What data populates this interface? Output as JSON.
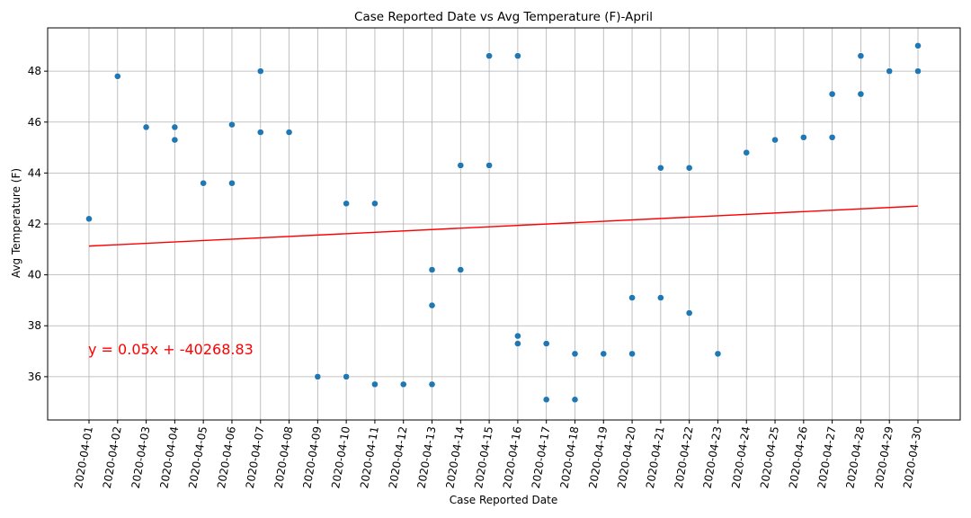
{
  "chart_data": {
    "type": "scatter",
    "title": "Case Reported Date vs Avg Temperature (F)-April",
    "xlabel": "Case Reported Date",
    "ylabel": "Avg Temperature (F)",
    "x_categories": [
      "2020-04-01",
      "2020-04-02",
      "2020-04-03",
      "2020-04-04",
      "2020-04-05",
      "2020-04-06",
      "2020-04-07",
      "2020-04-08",
      "2020-04-09",
      "2020-04-10",
      "2020-04-11",
      "2020-04-12",
      "2020-04-13",
      "2020-04-14",
      "2020-04-15",
      "2020-04-16",
      "2020-04-17",
      "2020-04-18",
      "2020-04-19",
      "2020-04-20",
      "2020-04-21",
      "2020-04-22",
      "2020-04-23",
      "2020-04-24",
      "2020-04-25",
      "2020-04-26",
      "2020-04-27",
      "2020-04-28",
      "2020-04-29",
      "2020-04-30"
    ],
    "y_ticks": [
      36,
      38,
      40,
      42,
      44,
      46,
      48
    ],
    "ylim": [
      34.3,
      49.7
    ],
    "grid": true,
    "points": [
      {
        "x": "2020-04-01",
        "y": 42.2
      },
      {
        "x": "2020-04-02",
        "y": 47.8
      },
      {
        "x": "2020-04-03",
        "y": 45.8
      },
      {
        "x": "2020-04-04",
        "y": 45.8
      },
      {
        "x": "2020-04-04",
        "y": 45.3
      },
      {
        "x": "2020-04-05",
        "y": 43.6
      },
      {
        "x": "2020-04-06",
        "y": 45.9
      },
      {
        "x": "2020-04-06",
        "y": 43.6
      },
      {
        "x": "2020-04-07",
        "y": 48.0
      },
      {
        "x": "2020-04-07",
        "y": 45.6
      },
      {
        "x": "2020-04-08",
        "y": 45.6
      },
      {
        "x": "2020-04-09",
        "y": 36.0
      },
      {
        "x": "2020-04-10",
        "y": 42.8
      },
      {
        "x": "2020-04-10",
        "y": 36.0
      },
      {
        "x": "2020-04-11",
        "y": 42.8
      },
      {
        "x": "2020-04-11",
        "y": 35.7
      },
      {
        "x": "2020-04-12",
        "y": 35.7
      },
      {
        "x": "2020-04-13",
        "y": 40.2
      },
      {
        "x": "2020-04-13",
        "y": 38.8
      },
      {
        "x": "2020-04-13",
        "y": 35.7
      },
      {
        "x": "2020-04-14",
        "y": 44.3
      },
      {
        "x": "2020-04-14",
        "y": 40.2
      },
      {
        "x": "2020-04-15",
        "y": 48.6
      },
      {
        "x": "2020-04-15",
        "y": 44.3
      },
      {
        "x": "2020-04-16",
        "y": 48.6
      },
      {
        "x": "2020-04-16",
        "y": 37.6
      },
      {
        "x": "2020-04-16",
        "y": 37.3
      },
      {
        "x": "2020-04-17",
        "y": 37.3
      },
      {
        "x": "2020-04-17",
        "y": 35.1
      },
      {
        "x": "2020-04-18",
        "y": 36.9
      },
      {
        "x": "2020-04-18",
        "y": 35.1
      },
      {
        "x": "2020-04-19",
        "y": 36.9
      },
      {
        "x": "2020-04-20",
        "y": 39.1
      },
      {
        "x": "2020-04-20",
        "y": 36.9
      },
      {
        "x": "2020-04-21",
        "y": 44.2
      },
      {
        "x": "2020-04-21",
        "y": 39.1
      },
      {
        "x": "2020-04-22",
        "y": 44.2
      },
      {
        "x": "2020-04-22",
        "y": 38.5
      },
      {
        "x": "2020-04-23",
        "y": 36.9
      },
      {
        "x": "2020-04-24",
        "y": 44.8
      },
      {
        "x": "2020-04-25",
        "y": 45.3
      },
      {
        "x": "2020-04-26",
        "y": 45.4
      },
      {
        "x": "2020-04-27",
        "y": 47.1
      },
      {
        "x": "2020-04-27",
        "y": 45.4
      },
      {
        "x": "2020-04-28",
        "y": 48.6
      },
      {
        "x": "2020-04-28",
        "y": 47.1
      },
      {
        "x": "2020-04-29",
        "y": 48.0
      },
      {
        "x": "2020-04-30",
        "y": 49.0
      },
      {
        "x": "2020-04-30",
        "y": 48.0
      }
    ],
    "regression_line": {
      "x_start": "2020-04-01",
      "y_start": 41.13,
      "x_end": "2020-04-30",
      "y_end": 42.7
    },
    "annotation": "y = 0.05x + -40268.83",
    "colors": {
      "points": "#1f77b4",
      "line": "#ff0000",
      "grid": "#b0b0b0"
    }
  }
}
